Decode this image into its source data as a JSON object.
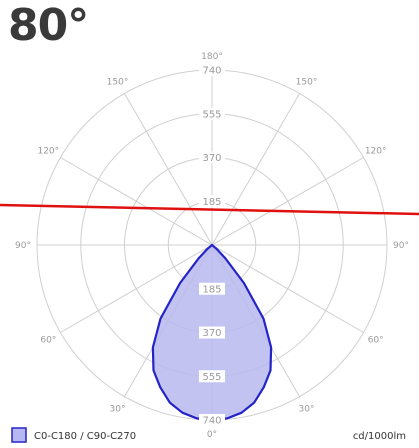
{
  "heading": "80°",
  "colors": {
    "curve_fill": "#b8b8f0",
    "curve_stroke": "#2323c8",
    "grid": "#cfcfcf",
    "cut_line": "#e01010"
  },
  "chart_data": {
    "type": "polar",
    "title": "",
    "unit_label": "cd/1000lm",
    "rmax": 740,
    "ring_values": [
      185,
      370,
      555,
      740
    ],
    "ring_labels": [
      "185",
      "370",
      "555",
      "740"
    ],
    "angle_labels": [
      {
        "angle": 180,
        "text": "180°"
      },
      {
        "angle": 150,
        "text": "150°"
      },
      {
        "angle": -150,
        "text": "150°"
      },
      {
        "angle": 120,
        "text": "120°"
      },
      {
        "angle": -120,
        "text": "120°"
      },
      {
        "angle": 90,
        "text": "90°"
      },
      {
        "angle": -90,
        "text": "90°"
      },
      {
        "angle": 60,
        "text": "60°"
      },
      {
        "angle": -60,
        "text": "60°"
      },
      {
        "angle": 30,
        "text": "30°"
      },
      {
        "angle": -30,
        "text": "30°"
      },
      {
        "angle": 0,
        "text": "0°"
      }
    ],
    "legend": [
      {
        "name": "C0-C180 / C90-C270"
      }
    ],
    "series": [
      {
        "name": "C0-C180 / C90-C270",
        "points": [
          {
            "angle": -90,
            "value": 0
          },
          {
            "angle": -75,
            "value": 0
          },
          {
            "angle": -60,
            "value": 0
          },
          {
            "angle": -50,
            "value": 25
          },
          {
            "angle": -45,
            "value": 80
          },
          {
            "angle": -40,
            "value": 210
          },
          {
            "angle": -35,
            "value": 380
          },
          {
            "angle": -30,
            "value": 500
          },
          {
            "angle": -25,
            "value": 585
          },
          {
            "angle": -20,
            "value": 640
          },
          {
            "angle": -15,
            "value": 690
          },
          {
            "angle": -10,
            "value": 720
          },
          {
            "angle": -5,
            "value": 736
          },
          {
            "angle": 0,
            "value": 740
          },
          {
            "angle": 5,
            "value": 736
          },
          {
            "angle": 10,
            "value": 720
          },
          {
            "angle": 15,
            "value": 690
          },
          {
            "angle": 20,
            "value": 640
          },
          {
            "angle": 25,
            "value": 585
          },
          {
            "angle": 30,
            "value": 500
          },
          {
            "angle": 35,
            "value": 380
          },
          {
            "angle": 40,
            "value": 210
          },
          {
            "angle": 45,
            "value": 80
          },
          {
            "angle": 50,
            "value": 25
          },
          {
            "angle": 60,
            "value": 0
          },
          {
            "angle": 75,
            "value": 0
          },
          {
            "angle": 90,
            "value": 0
          }
        ]
      }
    ],
    "cut_line": {
      "angle_from_vertical": 80
    }
  }
}
